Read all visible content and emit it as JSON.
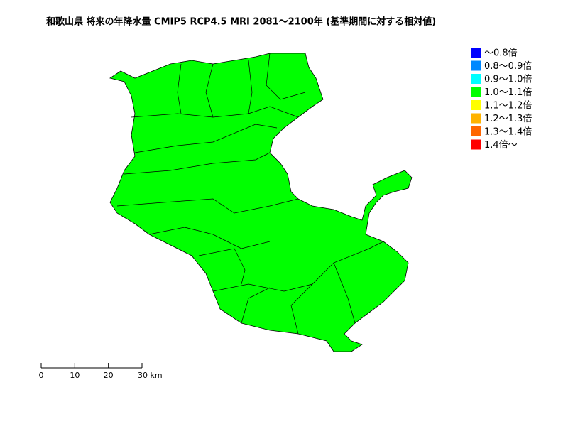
{
  "title": "和歌山県 将来の年降水量 CMIP5 RCP4.5 MRI 2081～2100年 (基準期間に対する相対値)",
  "legend": {
    "items": [
      {
        "label": "～0.8倍",
        "color": "#0000ff"
      },
      {
        "label": "0.8～0.9倍",
        "color": "#0088ff"
      },
      {
        "label": "0.9～1.0倍",
        "color": "#00ffff"
      },
      {
        "label": "1.0～1.1倍",
        "color": "#00ff00"
      },
      {
        "label": "1.1～1.2倍",
        "color": "#ffff00"
      },
      {
        "label": "1.2～1.3倍",
        "color": "#ffb300"
      },
      {
        "label": "1.3～1.4倍",
        "color": "#ff6600"
      },
      {
        "label": "1.4倍～",
        "color": "#ff0000"
      }
    ]
  },
  "scale_bar": {
    "labels": [
      "0",
      "10",
      "20",
      "30 km"
    ]
  }
}
